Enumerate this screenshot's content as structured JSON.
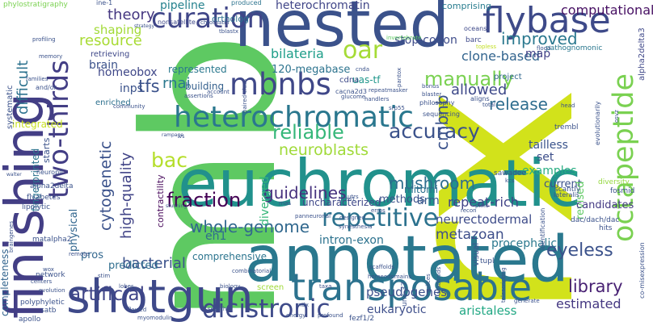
{
  "words": [
    {
      "text": "rx",
      "color": "#d2e21b"
    },
    {
      "text": "mb",
      "color": "#5ec962"
    },
    {
      "text": "nested",
      "color": "#3b528b"
    },
    {
      "text": "euchromatic",
      "color": "#21918c"
    },
    {
      "text": "annotated",
      "color": "#2a788e"
    },
    {
      "text": "finishing",
      "color": "#433e85"
    },
    {
      "text": "shotgun",
      "color": "#3e4989"
    },
    {
      "text": "transposable",
      "color": "#2c728e"
    },
    {
      "text": "flybase",
      "color": "#3e4a89"
    },
    {
      "text": "heterochromatic",
      "color": "#2a778e"
    },
    {
      "text": "curation",
      "color": "#404688"
    },
    {
      "text": "mbnbs",
      "color": "#3f4788"
    },
    {
      "text": "two-thirds",
      "color": "#433e85"
    },
    {
      "text": "octapeptide",
      "color": "#7ad151"
    },
    {
      "text": "repetitive",
      "color": "#2c728e"
    },
    {
      "text": "dicistronic",
      "color": "#3e4a89"
    },
    {
      "text": "artificial",
      "color": "#404588"
    },
    {
      "text": "reliable",
      "color": "#35b779"
    },
    {
      "text": "accuracy",
      "color": "#3b528b"
    },
    {
      "text": "fraction",
      "color": "#440154"
    },
    {
      "text": "whole-genome",
      "color": "#31688e"
    },
    {
      "text": "guidelines",
      "color": "#46327e"
    },
    {
      "text": "manually",
      "color": "#7ad151"
    },
    {
      "text": "oar",
      "color": "#a5db36"
    },
    {
      "text": "bac",
      "color": "#b5de2b"
    },
    {
      "text": "mushroom",
      "color": "#2e6e8e"
    },
    {
      "text": "cytogenetic",
      "color": "#3b528b"
    },
    {
      "text": "high-quality",
      "color": "#414487"
    },
    {
      "text": "neuroblasts",
      "color": "#a0da39"
    },
    {
      "text": "improved",
      "color": "#2a788e"
    },
    {
      "text": "library",
      "color": "#482173"
    },
    {
      "text": "eyeless",
      "color": "#3b528b"
    },
    {
      "text": "bilateria",
      "color": "#1f9e89"
    },
    {
      "text": "theory",
      "color": "#453781"
    },
    {
      "text": "resource",
      "color": "#a8db34"
    },
    {
      "text": "tfs",
      "color": "#3b528b"
    },
    {
      "text": "rnai",
      "color": "#2a788e"
    },
    {
      "text": "cmbnb",
      "color": "#3b528b"
    },
    {
      "text": "release",
      "color": "#2e6d8e"
    },
    {
      "text": "allowed",
      "color": "#3e4989"
    },
    {
      "text": "clone-based",
      "color": "#32648e"
    },
    {
      "text": "repeat-rich",
      "color": "#414487"
    },
    {
      "text": "neurectodermal",
      "color": "#3e4c8a"
    },
    {
      "text": "difficult",
      "color": "#2c728e"
    },
    {
      "text": "bacterial",
      "color": "#3b528b"
    },
    {
      "text": "pseudogenes",
      "color": "#3c508b"
    },
    {
      "text": "estimated",
      "color": "#453882"
    },
    {
      "text": "aristaless",
      "color": "#22a884"
    },
    {
      "text": "eukaryotic",
      "color": "#3d4e8a"
    },
    {
      "text": "metazoan",
      "color": "#3d4e8a"
    },
    {
      "text": "tailless",
      "color": "#3a548c"
    },
    {
      "text": "examples",
      "color": "#27ad81"
    },
    {
      "text": "computational",
      "color": "#471063"
    },
    {
      "text": "120-megabase",
      "color": "#2c738e"
    },
    {
      "text": "stop-codon",
      "color": "#3e4c8a"
    },
    {
      "text": "pipeline",
      "color": "#26828e"
    },
    {
      "text": "heterochromatin",
      "color": "#404588"
    },
    {
      "text": "comprising",
      "color": "#287c8e"
    },
    {
      "text": "ortholog",
      "color": "#2d708e"
    },
    {
      "text": "shaping",
      "color": "#a2da37"
    },
    {
      "text": "homeobox",
      "color": "#3f4788"
    },
    {
      "text": "brain",
      "color": "#3b528b"
    },
    {
      "text": "inps",
      "color": "#3b528b"
    },
    {
      "text": "represented",
      "color": "#2a788e"
    },
    {
      "text": "building",
      "color": "#35608d"
    },
    {
      "text": "arm",
      "color": "#375b8d"
    },
    {
      "text": "map",
      "color": "#424086"
    },
    {
      "text": "set",
      "color": "#3d4e8a"
    },
    {
      "text": "current",
      "color": "#3b528b"
    },
    {
      "text": "revised",
      "color": "#5ec962"
    },
    {
      "text": "methods",
      "color": "#3b528b"
    },
    {
      "text": "comprehensive",
      "color": "#2b748e"
    },
    {
      "text": "predicted",
      "color": "#2e6d8e"
    },
    {
      "text": "diverged",
      "color": "#34b679"
    },
    {
      "text": "contractility",
      "color": "#46075a"
    },
    {
      "text": "eh1",
      "color": "#2f6c8e"
    },
    {
      "text": "intron-exon",
      "color": "#2c728e"
    },
    {
      "text": "procephalic",
      "color": "#2a788e"
    },
    {
      "text": "pros",
      "color": "#31668e"
    },
    {
      "text": "physical",
      "color": "#31668e"
    },
    {
      "text": "integrated",
      "color": "#c8e020"
    },
    {
      "text": "fingerprinted",
      "color": "#2c738e"
    },
    {
      "text": "completeness",
      "color": "#32648e"
    },
    {
      "text": "starts",
      "color": "#3b528b"
    },
    {
      "text": "project",
      "color": "#31678e"
    },
    {
      "text": "candidates",
      "color": "#443a83"
    },
    {
      "text": "alpha2delta3",
      "color": "#3f4889"
    },
    {
      "text": "pathognomonic",
      "color": "#2a778e"
    },
    {
      "text": "uas-tf",
      "color": "#1f978b"
    },
    {
      "text": "cdna",
      "color": "#3e4a89"
    },
    {
      "text": "mitomi",
      "color": "#2d708e"
    },
    {
      "text": "uncharacterized",
      "color": "#3f4889"
    },
    {
      "text": "screen",
      "color": "#a0da39"
    },
    {
      "text": "visual",
      "color": "#3b528b"
    },
    {
      "text": "enriched",
      "color": "#2d708e"
    },
    {
      "text": "systematic",
      "color": "#3b528b"
    },
    {
      "text": "retrieving",
      "color": "#3f4889"
    },
    {
      "text": "nonsatellite",
      "color": "#3f4889"
    },
    {
      "text": "phylostratigraphy",
      "color": "#7ad151"
    },
    {
      "text": "produced",
      "color": "#2c738e"
    },
    {
      "text": "invertebrate",
      "color": "#5ec962"
    },
    {
      "text": "barc",
      "color": "#3e4989"
    },
    {
      "text": "oceans",
      "color": "#3e4989"
    },
    {
      "text": "topless",
      "color": "#c2df23"
    },
    {
      "text": "flood",
      "color": "#3b528b"
    },
    {
      "text": "trembl",
      "color": "#3b528b"
    },
    {
      "text": "sawadee",
      "color": "#3b528b"
    },
    {
      "text": "scantly",
      "color": "#3b528b"
    },
    {
      "text": "lateralis",
      "color": "#3b528b"
    },
    {
      "text": "diversity",
      "color": "#95d840"
    },
    {
      "text": "fosmid",
      "color": "#3b528b"
    },
    {
      "text": "hits",
      "color": "#3b528b"
    },
    {
      "text": "dac/dach/dac",
      "color": "#3b528b"
    },
    {
      "text": "co-misexpression",
      "color": "#3b528b"
    },
    {
      "text": "identification",
      "color": "#3b528b"
    },
    {
      "text": "tupl",
      "color": "#3b528b"
    },
    {
      "text": "unc-37",
      "color": "#3b528b"
    },
    {
      "text": "fezf1/2",
      "color": "#3b528b"
    },
    {
      "text": "apollo",
      "color": "#3b528b"
    },
    {
      "text": "satb",
      "color": "#3b528b"
    },
    {
      "text": "polyphyletic",
      "color": "#3b528b"
    },
    {
      "text": "network",
      "color": "#3b528b"
    },
    {
      "text": "lipolytic",
      "color": "#3b528b"
    },
    {
      "text": "flyabetes",
      "color": "#3b528b"
    },
    {
      "text": "matalpha2",
      "color": "#3b528b"
    },
    {
      "text": "alpha2delta",
      "color": "#3b528b"
    },
    {
      "text": "walter",
      "color": "#3b528b"
    },
    {
      "text": "neuropil",
      "color": "#3b528b"
    },
    {
      "text": "memory",
      "color": "#3b528b"
    },
    {
      "text": "families",
      "color": "#3b528b"
    },
    {
      "text": "and/or",
      "color": "#3b528b"
    },
    {
      "text": "profiling",
      "color": "#3b528b"
    },
    {
      "text": "ine-1",
      "color": "#3b528b"
    },
    {
      "text": "strategy",
      "color": "#3b528b"
    },
    {
      "text": "tblastx",
      "color": "#3b528b"
    },
    {
      "text": "rampage",
      "color": "#3b528b"
    },
    {
      "text": "cacna2d3",
      "color": "#3b528b"
    },
    {
      "text": "glucome",
      "color": "#3b528b"
    },
    {
      "text": "repeatmasker",
      "color": "#3b528b"
    },
    {
      "text": "handlers",
      "color": "#3b528b"
    },
    {
      "text": "srp55",
      "color": "#3b528b"
    },
    {
      "text": "philosophy",
      "color": "#3b528b"
    },
    {
      "text": "sequencing",
      "color": "#3b528b"
    },
    {
      "text": "blaster",
      "color": "#3b528b"
    },
    {
      "text": "bonus",
      "color": "#3b528b"
    },
    {
      "text": "aligns",
      "color": "#3b528b"
    },
    {
      "text": "total",
      "color": "#3b528b"
    },
    {
      "text": "head",
      "color": "#3b528b"
    },
    {
      "text": "evolutionarily",
      "color": "#3b528b"
    },
    {
      "text": "osvz",
      "color": "#3b528b"
    },
    {
      "text": "recon",
      "color": "#3b528b"
    },
    {
      "text": "plinc",
      "color": "#3b528b"
    },
    {
      "text": "erros",
      "color": "#3b528b"
    },
    {
      "text": "kcs",
      "color": "#3b528b"
    },
    {
      "text": "dchs1",
      "color": "#3b528b"
    },
    {
      "text": "designed",
      "color": "#3b528b"
    },
    {
      "text": "synesthesia",
      "color": "#3b528b"
    },
    {
      "text": "scaffolds",
      "color": "#3b528b"
    },
    {
      "text": "homeodomains",
      "color": "#3b528b"
    },
    {
      "text": "splices",
      "color": "#3b528b"
    },
    {
      "text": "arachnids",
      "color": "#3b528b"
    },
    {
      "text": "telescripting",
      "color": "#3b528b"
    },
    {
      "text": "generate",
      "color": "#3b528b"
    },
    {
      "text": "rnas",
      "color": "#3b528b"
    },
    {
      "text": "taxa",
      "color": "#3b528b"
    },
    {
      "text": "ndx",
      "color": "#3b528b"
    },
    {
      "text": "profound",
      "color": "#3b528b"
    },
    {
      "text": "energy",
      "color": "#3b528b"
    },
    {
      "text": "combinatorial",
      "color": "#3b528b"
    },
    {
      "text": "biology",
      "color": "#3b528b"
    },
    {
      "text": "stim",
      "color": "#3b528b"
    },
    {
      "text": "remote",
      "color": "#3b528b"
    },
    {
      "text": "lobes",
      "color": "#3b528b"
    },
    {
      "text": "centers",
      "color": "#3b528b"
    },
    {
      "text": "evolution",
      "color": "#3b528b"
    },
    {
      "text": "braingenes",
      "color": "#3b528b"
    },
    {
      "text": "flawed",
      "color": "#3b528b"
    },
    {
      "text": "myomodulin",
      "color": "#3b528b"
    },
    {
      "text": "search",
      "color": "#3b528b"
    },
    {
      "text": "paired-class",
      "color": "#3b528b"
    },
    {
      "text": "assertions",
      "color": "#3b528b"
    },
    {
      "text": "wox",
      "color": "#3b528b"
    },
    {
      "text": "cnda",
      "color": "#3b528b"
    },
    {
      "text": "pantox",
      "color": "#3b528b"
    },
    {
      "text": "utrs",
      "color": "#3b528b"
    },
    {
      "text": "panneuronal",
      "color": "#3b528b"
    },
    {
      "text": "community",
      "color": "#3b528b"
    },
    {
      "text": "account",
      "color": "#3b528b"
    },
    {
      "text": "stunning",
      "color": "#3b528b"
    },
    {
      "text": "ivs",
      "color": "#3b528b"
    },
    {
      "text": "chromatin",
      "color": "#3b528b"
    }
  ]
}
